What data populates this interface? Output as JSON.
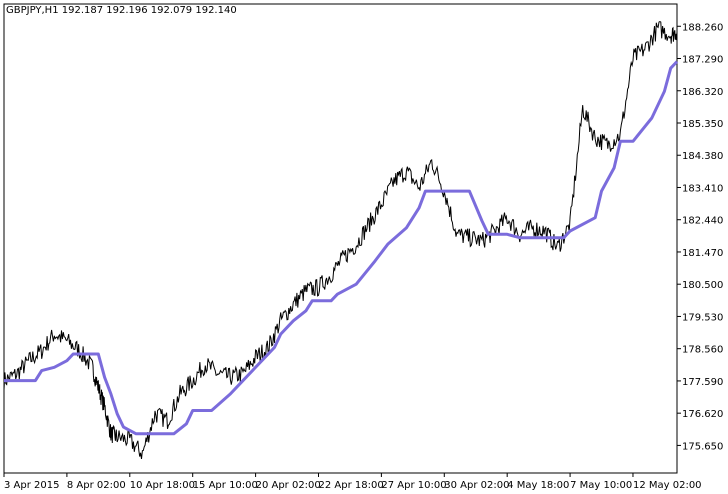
{
  "chart_data": {
    "type": "line",
    "title": "GBPJPY,H1  192.187 192.196 192.079 192.140",
    "price_axis": {
      "ticks": [
        188.26,
        187.29,
        186.32,
        185.35,
        184.38,
        183.41,
        182.44,
        181.47,
        180.5,
        179.53,
        178.56,
        177.59,
        176.62,
        175.65
      ],
      "tick_labels": [
        "188.260",
        "187.290",
        "186.320",
        "185.350",
        "184.380",
        "183.410",
        "182.440",
        "181.470",
        "180.500",
        "179.530",
        "178.560",
        "177.590",
        "176.620",
        "175.650"
      ],
      "ylim": [
        174.82,
        188.93
      ]
    },
    "time_axis": {
      "tick_labels": [
        "3 Apr 2015",
        "8 Apr 02:00",
        "10 Apr 18:00",
        "15 Apr 10:00",
        "20 Apr 02:00",
        "22 Apr 18:00",
        "27 Apr 10:00",
        "30 Apr 02:00",
        "4 May 18:00",
        "7 May 10:00",
        "12 May 02:00"
      ],
      "tick_index": [
        0,
        1,
        2,
        3,
        4,
        5,
        6,
        7,
        8,
        9,
        10
      ],
      "xlim": [
        0,
        10.7
      ]
    },
    "grid": false,
    "series": [
      {
        "kind": "price",
        "color": "#000000",
        "x": [
          0,
          0.2,
          0.4,
          0.6,
          0.8,
          1.0,
          1.2,
          1.4,
          1.5,
          1.6,
          1.7,
          1.8,
          2.0,
          2.2,
          2.4,
          2.6,
          2.8,
          3.0,
          3.2,
          3.4,
          3.6,
          3.8,
          4.0,
          4.2,
          4.4,
          4.6,
          4.8,
          5.0,
          5.2,
          5.4,
          5.6,
          5.8,
          6.0,
          6.2,
          6.4,
          6.6,
          6.8,
          7.0,
          7.2,
          7.4,
          7.6,
          7.8,
          8.0,
          8.2,
          8.4,
          8.6,
          8.8,
          9.0,
          9.2,
          9.4,
          9.6,
          9.8,
          10.0,
          10.2,
          10.4,
          10.6,
          10.7
        ],
        "y": [
          177.6,
          177.8,
          178.2,
          178.5,
          179.0,
          178.8,
          178.5,
          178.0,
          177.4,
          176.8,
          176.0,
          175.9,
          175.8,
          175.4,
          176.6,
          176.4,
          177.2,
          177.6,
          178.1,
          177.8,
          177.7,
          177.8,
          178.3,
          178.6,
          179.4,
          179.9,
          180.3,
          180.4,
          180.8,
          181.3,
          181.7,
          182.3,
          182.9,
          183.6,
          183.9,
          183.4,
          184.2,
          183.3,
          182.0,
          181.9,
          181.8,
          182.1,
          182.5,
          182.0,
          182.2,
          182.1,
          181.6,
          182.3,
          185.8,
          184.9,
          184.7,
          185.0,
          187.3,
          187.6,
          188.2,
          188.0,
          188.1
        ]
      },
      {
        "kind": "indicator",
        "color": "#7b6cdc",
        "x": [
          0,
          0.5,
          0.6,
          0.8,
          1.0,
          1.1,
          1.5,
          1.6,
          1.7,
          1.8,
          1.9,
          2.1,
          2.2,
          2.4,
          2.7,
          2.9,
          3.0,
          3.3,
          3.6,
          3.7,
          4.3,
          4.4,
          4.6,
          4.8,
          4.9,
          5.2,
          5.3,
          5.6,
          5.9,
          6.1,
          6.4,
          6.6,
          6.7,
          6.9,
          7.0,
          7.3,
          7.4,
          7.6,
          7.7,
          8.0,
          8.2,
          8.9,
          9.0,
          9.4,
          9.5,
          9.7,
          9.8,
          10.0,
          10.3,
          10.5,
          10.6,
          10.7
        ],
        "y": [
          177.6,
          177.6,
          177.9,
          178.0,
          178.2,
          178.4,
          178.4,
          177.7,
          177.2,
          176.6,
          176.2,
          176.0,
          176.0,
          176.0,
          176.0,
          176.3,
          176.7,
          176.7,
          177.2,
          177.4,
          178.6,
          179.0,
          179.4,
          179.7,
          180.0,
          180.0,
          180.2,
          180.5,
          181.2,
          181.7,
          182.2,
          182.8,
          183.3,
          183.3,
          183.3,
          183.3,
          183.3,
          182.4,
          182.0,
          182.0,
          181.9,
          181.9,
          182.1,
          182.5,
          183.3,
          184.0,
          184.8,
          184.8,
          185.5,
          186.3,
          187.0,
          187.2
        ]
      }
    ]
  }
}
